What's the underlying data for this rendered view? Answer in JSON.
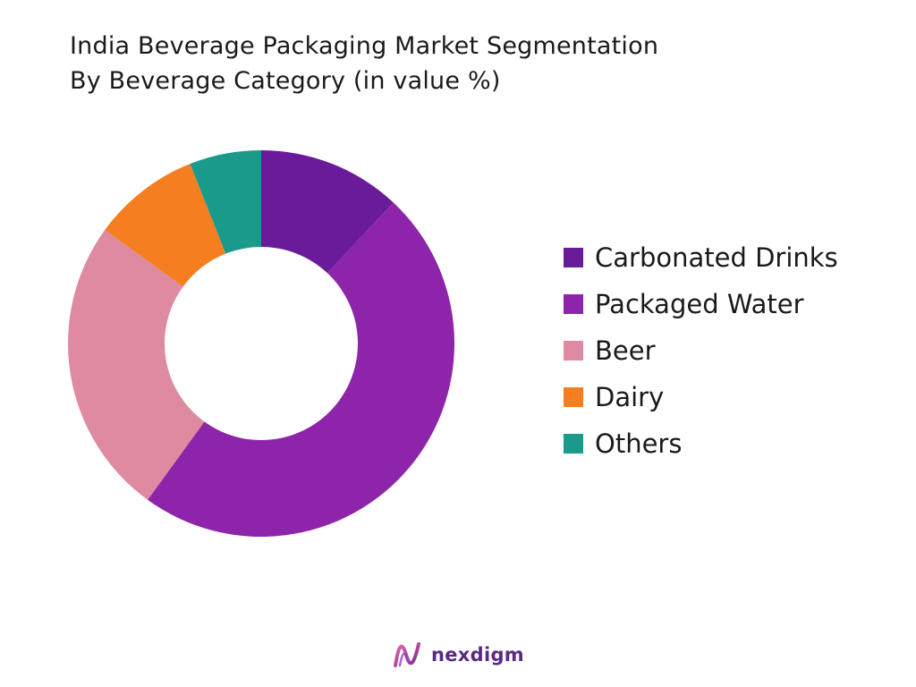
{
  "title_line1": "India Beverage Packaging Market Segmentation",
  "title_line2": "By Beverage Category (in value %)",
  "chart_data": {
    "type": "pie",
    "donut": true,
    "legend_position": "right",
    "categories": [
      "Carbonated Drinks",
      "Packaged Water",
      "Beer",
      "Dairy",
      "Others"
    ],
    "values": [
      12,
      48,
      25,
      9,
      6
    ],
    "colors": [
      "#6a1b9a",
      "#8e24aa",
      "#de8aa0",
      "#f57f20",
      "#1a9a8a"
    ]
  },
  "legend": [
    {
      "label": "Carbonated Drinks",
      "color": "#6a1b9a"
    },
    {
      "label": "Packaged Water",
      "color": "#8e24aa"
    },
    {
      "label": "Beer",
      "color": "#de8aa0"
    },
    {
      "label": "Dairy",
      "color": "#f57f20"
    },
    {
      "label": "Others",
      "color": "#1a9a8a"
    }
  ],
  "brand": {
    "name": "nexdigm",
    "icon": "nexdigm-wave-logo-icon",
    "color": "#5a2a83"
  }
}
